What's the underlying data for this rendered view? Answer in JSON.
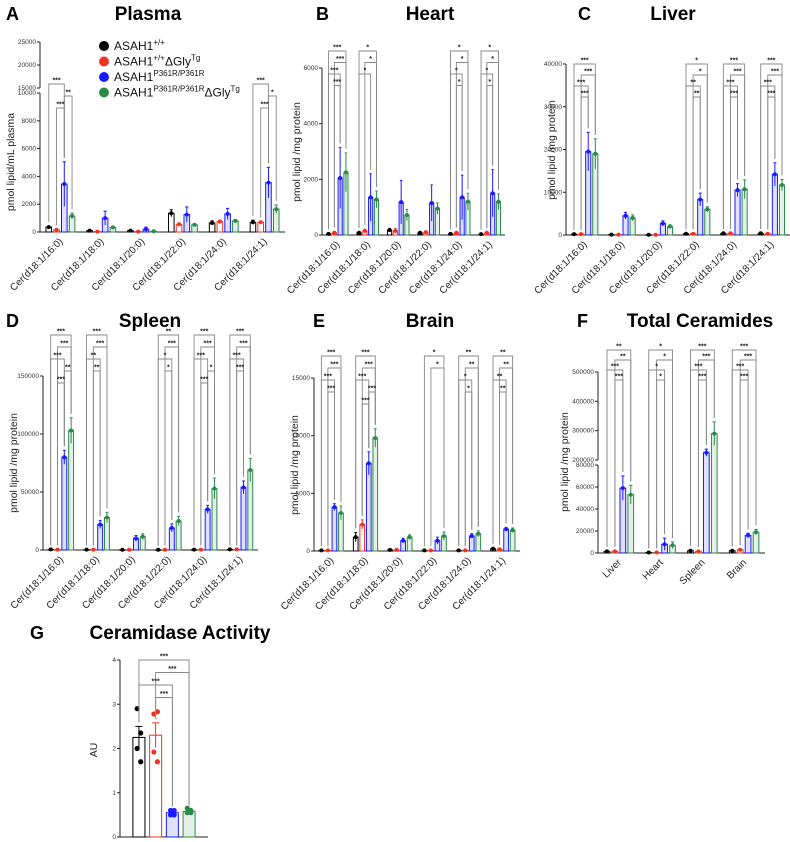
{
  "colors": {
    "g0": "#000000",
    "g1": "#ee3322",
    "g2": "#1a1aff",
    "g3": "#2a8a4a",
    "bracket": "#888888"
  },
  "legend": [
    {
      "base": "ASAH1",
      "sup": "+/+",
      "suffix": "",
      "sup2": ""
    },
    {
      "base": "ASAH1",
      "sup": "+/+",
      "suffix": "ΔGly",
      "sup2": "Tg"
    },
    {
      "base": "ASAH1",
      "sup": "P361R/P361R",
      "suffix": "",
      "sup2": ""
    },
    {
      "base": "ASAH1",
      "sup": "P361R/P361R",
      "suffix": "ΔGly",
      "sup2": "Tg"
    }
  ],
  "chart_data": [
    {
      "id": "A",
      "type": "bar",
      "letter": "A",
      "title": "Plasma",
      "ylabel": "pmol lipid/mL plasma",
      "segments": [
        [
          0,
          10000
        ],
        [
          15000,
          25000
        ]
      ],
      "yticks": [
        0,
        2000,
        4000,
        6000,
        8000,
        10000,
        15000,
        20000,
        25000
      ],
      "categories": [
        "Cer(d18:1/16:0)",
        "Cer(d18:1/18:0)",
        "Cer(d18:1/20:0)",
        "Cer(d18:1/22:0)",
        "Cer(d18:1/24:0)",
        "Cer(d18:1/24:1)"
      ],
      "means": [
        [
          350,
          150,
          3450,
          1150
        ],
        [
          100,
          30,
          1000,
          330
        ],
        [
          100,
          30,
          200,
          50
        ],
        [
          1350,
          550,
          1250,
          520
        ],
        [
          650,
          750,
          1300,
          800
        ],
        [
          700,
          700,
          3550,
          1650
        ]
      ],
      "errors": [
        [
          80,
          40,
          1600,
          200
        ],
        [
          30,
          10,
          500,
          80
        ],
        [
          30,
          10,
          150,
          30
        ],
        [
          250,
          100,
          550,
          80
        ],
        [
          150,
          100,
          400,
          100
        ],
        [
          150,
          50,
          1100,
          300
        ]
      ],
      "brackets": [
        [
          [
            0,
            2,
            "***"
          ],
          [
            2,
            3,
            "**"
          ],
          [
            1,
            2,
            "***"
          ]
        ],
        [],
        [],
        [],
        [],
        [
          [
            0,
            2,
            "***"
          ],
          [
            2,
            3,
            "*"
          ],
          [
            1,
            2,
            "***"
          ]
        ]
      ]
    },
    {
      "id": "B",
      "type": "bar",
      "letter": "B",
      "title": "Heart",
      "ylabel": "pmol lipid /mg protein",
      "segments": [
        [
          0,
          6000
        ]
      ],
      "yticks": [
        0,
        2000,
        4000,
        6000
      ],
      "categories": [
        "Cer(d18:1/16:0)",
        "Cer(d18:1/18:0)",
        "Cer(d18:1/20:0)",
        "Cer(d18:1/22:0)",
        "Cer(d18:1/24:0)",
        "Cer(d18:1/24:1)"
      ],
      "means": [
        [
          40,
          80,
          2050,
          2250
        ],
        [
          80,
          150,
          1350,
          1280
        ],
        [
          180,
          150,
          1180,
          720
        ],
        [
          80,
          100,
          1150,
          950
        ],
        [
          40,
          80,
          1350,
          1200
        ],
        [
          30,
          80,
          1500,
          1200
        ]
      ],
      "errors": [
        [
          20,
          40,
          1100,
          700
        ],
        [
          30,
          60,
          850,
          300
        ],
        [
          60,
          80,
          780,
          200
        ],
        [
          30,
          50,
          650,
          200
        ],
        [
          20,
          40,
          800,
          300
        ],
        [
          15,
          30,
          850,
          280
        ]
      ],
      "brackets": [
        [
          [
            0,
            3,
            "***"
          ],
          [
            1,
            3,
            "***"
          ],
          [
            0,
            2,
            "***"
          ],
          [
            1,
            2,
            "***"
          ]
        ],
        [
          [
            0,
            3,
            "*"
          ],
          [
            1,
            3,
            "*"
          ],
          [
            0,
            2,
            "*"
          ]
        ],
        [],
        [],
        [
          [
            0,
            3,
            "*"
          ],
          [
            1,
            3,
            "*"
          ],
          [
            0,
            2,
            "*"
          ],
          [
            1,
            2,
            "*"
          ]
        ],
        [
          [
            0,
            3,
            "*"
          ],
          [
            1,
            3,
            "*"
          ],
          [
            0,
            2,
            "*"
          ],
          [
            1,
            2,
            "*"
          ]
        ]
      ]
    },
    {
      "id": "C",
      "type": "bar",
      "letter": "C",
      "title": "Liver",
      "ylabel": "pmol lipid /mg protein",
      "segments": [
        [
          0,
          40000
        ]
      ],
      "yticks": [
        0,
        10000,
        20000,
        30000,
        40000
      ],
      "categories": [
        "Cer(d18:1/16:0)",
        "Cer(d18:1/18:0)",
        "Cer(d18:1/20:0)",
        "Cer(d18:1/22:0)",
        "Cer(d18:1/24:0)",
        "Cer(d18:1/24:1)"
      ],
      "means": [
        [
          200,
          200,
          19500,
          19000
        ],
        [
          100,
          100,
          4500,
          4000
        ],
        [
          50,
          50,
          2700,
          2000
        ],
        [
          300,
          300,
          8300,
          6000
        ],
        [
          400,
          400,
          10500,
          10700
        ],
        [
          400,
          300,
          14200,
          11700
        ]
      ],
      "errors": [
        [
          50,
          50,
          4500,
          3500
        ],
        [
          30,
          30,
          800,
          700
        ],
        [
          20,
          20,
          600,
          400
        ],
        [
          60,
          60,
          1500,
          600
        ],
        [
          80,
          80,
          1500,
          2200
        ],
        [
          80,
          60,
          2700,
          1300
        ]
      ],
      "brackets": [
        [
          [
            0,
            3,
            "***"
          ],
          [
            1,
            3,
            "***"
          ],
          [
            0,
            2,
            "***"
          ],
          [
            1,
            2,
            "***"
          ]
        ],
        [],
        [],
        [
          [
            0,
            3,
            "*"
          ],
          [
            1,
            3,
            "*"
          ],
          [
            0,
            2,
            "**"
          ],
          [
            1,
            2,
            "**"
          ]
        ],
        [
          [
            0,
            3,
            "***"
          ],
          [
            1,
            3,
            "***"
          ],
          [
            0,
            2,
            "***"
          ],
          [
            1,
            2,
            "***"
          ]
        ],
        [
          [
            0,
            3,
            "***"
          ],
          [
            1,
            3,
            "***"
          ],
          [
            0,
            2,
            "***"
          ],
          [
            1,
            2,
            "***"
          ]
        ]
      ]
    },
    {
      "id": "D",
      "type": "bar",
      "letter": "D",
      "title": "Spleen",
      "ylabel": "pmol lipid /mg protein",
      "segments": [
        [
          0,
          150000
        ]
      ],
      "yticks": [
        0,
        50000,
        100000,
        150000
      ],
      "categories": [
        "Cer(d18:1/16:0)",
        "Cer(d18:1/18:0)",
        "Cer(d18:1/20:0)",
        "Cer(d18:1/22:0)",
        "Cer(d18:1/24:0)",
        "Cer(d18:1/24:1)"
      ],
      "means": [
        [
          500,
          300,
          80000,
          103000
        ],
        [
          300,
          300,
          22000,
          28000
        ],
        [
          200,
          200,
          10000,
          11500
        ],
        [
          200,
          200,
          19000,
          25000
        ],
        [
          300,
          300,
          35000,
          53000
        ],
        [
          500,
          500,
          54000,
          69000
        ]
      ],
      "errors": [
        [
          100,
          80,
          6000,
          11000
        ],
        [
          80,
          80,
          3500,
          4500
        ],
        [
          50,
          50,
          2500,
          2500
        ],
        [
          50,
          50,
          3500,
          4000
        ],
        [
          80,
          80,
          3500,
          9000
        ],
        [
          100,
          100,
          5500,
          10000
        ]
      ],
      "brackets": [
        [
          [
            0,
            3,
            "***"
          ],
          [
            1,
            3,
            "***"
          ],
          [
            0,
            2,
            "***"
          ],
          [
            2,
            3,
            "**"
          ],
          [
            1,
            2,
            "***"
          ]
        ],
        [
          [
            0,
            3,
            "***"
          ],
          [
            1,
            3,
            "***"
          ],
          [
            0,
            2,
            "**"
          ],
          [
            1,
            2,
            "**"
          ]
        ],
        [],
        [
          [
            0,
            3,
            "**"
          ],
          [
            1,
            3,
            "***"
          ],
          [
            0,
            2,
            "*"
          ],
          [
            1,
            2,
            "*"
          ]
        ],
        [
          [
            0,
            3,
            "***"
          ],
          [
            1,
            3,
            "***"
          ],
          [
            0,
            2,
            "***"
          ],
          [
            2,
            3,
            "*"
          ],
          [
            1,
            2,
            "***"
          ]
        ],
        [
          [
            0,
            3,
            "***"
          ],
          [
            1,
            3,
            "***"
          ],
          [
            0,
            2,
            "***"
          ],
          [
            1,
            2,
            "***"
          ]
        ]
      ]
    },
    {
      "id": "E",
      "type": "bar",
      "letter": "E",
      "title": "Brain",
      "ylabel": "pmol lipid /mg protein",
      "segments": [
        [
          0,
          15000
        ]
      ],
      "yticks": [
        0,
        5000,
        10000,
        15000
      ],
      "categories": [
        "Cer(d18:1/16:0)",
        "Cer(d18:1/18:0)",
        "Cer(d18:1/20:0)",
        "Cer(d18:1/22:0)",
        "Cer(d18:1/24:0)",
        "Cer(d18:1/24:1)"
      ],
      "means": [
        [
          50,
          50,
          3800,
          3300
        ],
        [
          1200,
          2300,
          7600,
          9800
        ],
        [
          100,
          100,
          900,
          1200
        ],
        [
          50,
          50,
          900,
          1300
        ],
        [
          50,
          50,
          1300,
          1500
        ],
        [
          200,
          150,
          1900,
          1800
        ]
      ],
      "errors": [
        [
          20,
          20,
          300,
          600
        ],
        [
          400,
          400,
          1000,
          800
        ],
        [
          30,
          30,
          200,
          200
        ],
        [
          20,
          20,
          300,
          350
        ],
        [
          20,
          20,
          200,
          250
        ],
        [
          60,
          50,
          150,
          200
        ]
      ],
      "brackets": [
        [
          [
            0,
            3,
            "***"
          ],
          [
            1,
            3,
            "***"
          ],
          [
            0,
            2,
            "***"
          ],
          [
            1,
            2,
            "***"
          ]
        ],
        [
          [
            0,
            3,
            "***"
          ],
          [
            1,
            3,
            "***"
          ],
          [
            0,
            2,
            "***"
          ],
          [
            2,
            3,
            "***"
          ],
          [
            1,
            2,
            "***"
          ]
        ],
        [],
        [
          [
            0,
            3,
            "*"
          ],
          [
            1,
            3,
            "*"
          ]
        ],
        [
          [
            0,
            3,
            "**"
          ],
          [
            1,
            3,
            "**"
          ],
          [
            0,
            2,
            "*"
          ],
          [
            1,
            2,
            "*"
          ]
        ],
        [
          [
            0,
            3,
            "**"
          ],
          [
            1,
            3,
            "**"
          ],
          [
            0,
            2,
            "**"
          ],
          [
            1,
            2,
            "**"
          ]
        ]
      ]
    },
    {
      "id": "F",
      "type": "bar",
      "letter": "F",
      "title": "Total Ceramides",
      "ylabel": "pmol lipid /mg protein",
      "segments": [
        [
          0,
          80000
        ],
        [
          200000,
          500000
        ]
      ],
      "yticks": [
        0,
        20000,
        40000,
        60000,
        80000,
        200000,
        300000,
        400000,
        500000
      ],
      "categories": [
        "Liver",
        "Heart",
        "Spleen",
        "Brain"
      ],
      "means": [
        [
          1500,
          1500,
          59000,
          53000
        ],
        [
          500,
          500,
          8000,
          7000
        ],
        [
          2000,
          1500,
          225000,
          290000
        ],
        [
          2000,
          3000,
          16000,
          19000
        ]
      ],
      "errors": [
        [
          300,
          300,
          11000,
          8500
        ],
        [
          100,
          100,
          5500,
          3000
        ],
        [
          800,
          400,
          12000,
          40000
        ],
        [
          400,
          500,
          2000,
          2500
        ]
      ],
      "brackets": [
        [
          [
            0,
            3,
            "**"
          ],
          [
            1,
            3,
            "**"
          ],
          [
            0,
            2,
            "***"
          ],
          [
            1,
            2,
            "***"
          ]
        ],
        [
          [
            0,
            3,
            "*"
          ],
          [
            1,
            3,
            "*"
          ],
          [
            0,
            2,
            "*"
          ],
          [
            1,
            2,
            "*"
          ]
        ],
        [
          [
            0,
            3,
            "***"
          ],
          [
            1,
            3,
            "***"
          ],
          [
            0,
            2,
            "***"
          ],
          [
            1,
            2,
            "***"
          ]
        ],
        [
          [
            0,
            3,
            "***"
          ],
          [
            1,
            3,
            "***"
          ],
          [
            0,
            2,
            "***"
          ],
          [
            1,
            2,
            "***"
          ]
        ]
      ]
    },
    {
      "id": "G",
      "type": "bar",
      "letter": "G",
      "title": "Ceramidase Activity",
      "ylabel": "AU",
      "segments": [
        [
          0,
          4
        ]
      ],
      "yticks": [
        0,
        1,
        2,
        3,
        4
      ],
      "categories": [
        ""
      ],
      "means": [
        [
          2.25,
          2.3,
          0.55,
          0.58
        ]
      ],
      "errors": [
        [
          0.25,
          0.28,
          0.05,
          0.04
        ]
      ],
      "points": [
        [
          [
            2.9,
            2.35,
            2.0,
            1.7
          ],
          [
            2.78,
            2.83,
            1.92,
            1.7
          ],
          [
            0.6,
            0.6,
            0.5,
            0.5
          ],
          [
            0.65,
            0.55,
            0.55,
            0.6
          ]
        ]
      ],
      "brackets": [
        [
          [
            0,
            3,
            "***"
          ],
          [
            1,
            3,
            "***"
          ],
          [
            0,
            2,
            "***"
          ],
          [
            1,
            2,
            "***"
          ]
        ]
      ]
    }
  ]
}
